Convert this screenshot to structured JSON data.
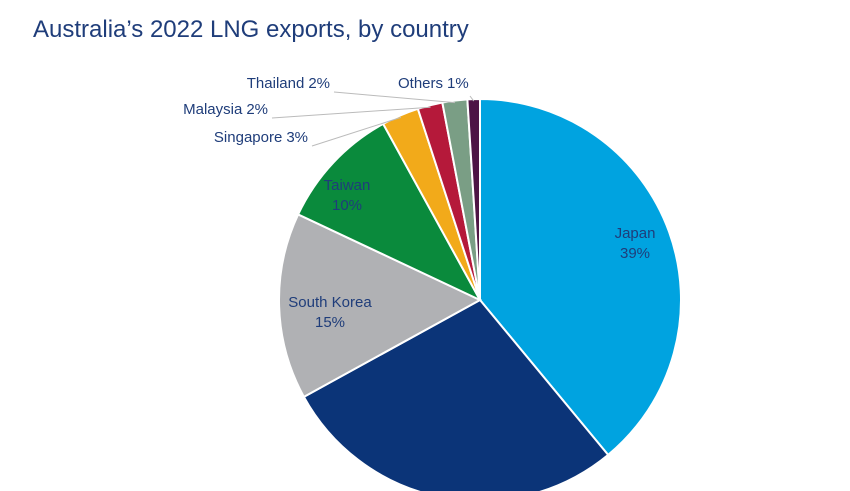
{
  "chart_data": {
    "type": "pie",
    "title": "Australia’s 2022 LNG exports, by country",
    "categories": [
      "Japan",
      null,
      "South Korea",
      "Taiwan",
      "Singapore",
      "Malaysia",
      "Thailand",
      "Others"
    ],
    "values": [
      39,
      28,
      15,
      10,
      3,
      2,
      2,
      1
    ],
    "value_labels": [
      "39%",
      null,
      "15%",
      "10%",
      "3%",
      "2%",
      "2%",
      "1%"
    ],
    "colors": [
      "#00a3e0",
      "#0b3478",
      "#b0b1b4",
      "#0a8a3c",
      "#f2aa1a",
      "#b5193a",
      "#7a9e85",
      "#4d1445"
    ]
  }
}
